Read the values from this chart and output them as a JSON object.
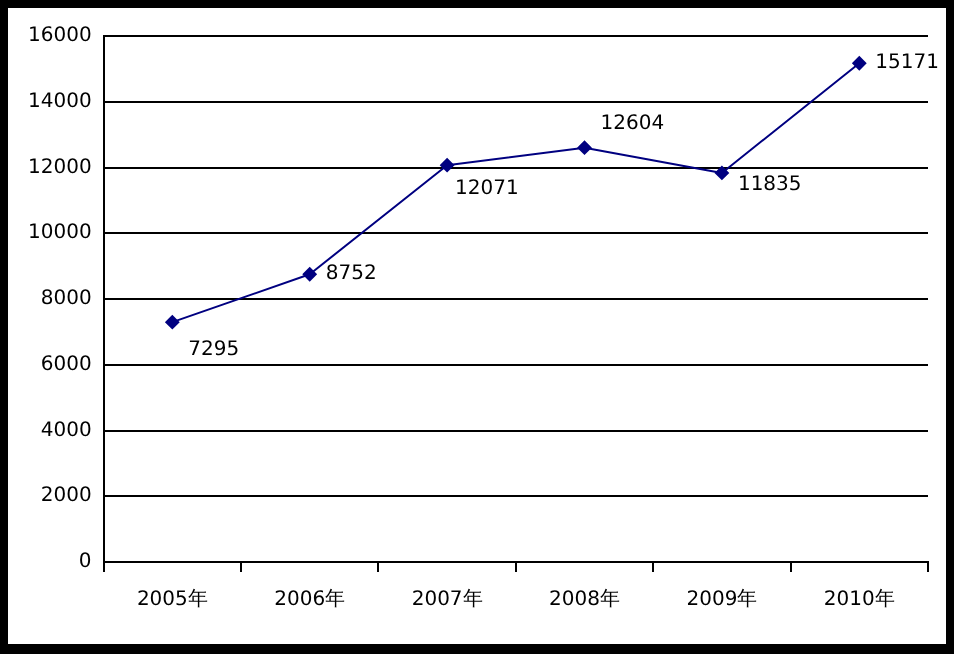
{
  "chart_data": {
    "type": "line",
    "categories": [
      "2005年",
      "2006年",
      "2007年",
      "2008年",
      "2009年",
      "2010年"
    ],
    "series": [
      {
        "color": "#000080",
        "values": [
          7295,
          8752,
          12071,
          12604,
          11835,
          15171
        ]
      }
    ],
    "ylim": [
      0,
      16000
    ],
    "yticks": [
      0,
      2000,
      4000,
      6000,
      8000,
      10000,
      12000,
      14000,
      16000
    ],
    "grid": "y",
    "marker": "diamond",
    "line_style": "solid",
    "legend": false,
    "data_labels": true
  }
}
